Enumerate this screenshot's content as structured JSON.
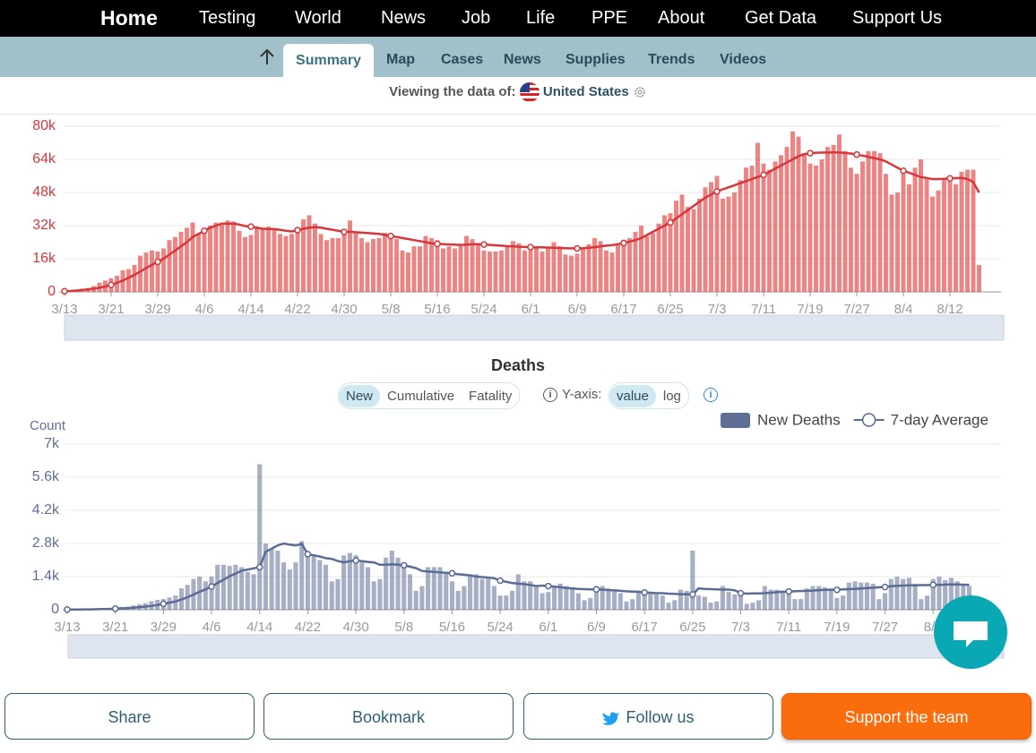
{
  "nav": {
    "brand": "Home",
    "items": [
      "Testing",
      "World",
      "News",
      "Job",
      "Life",
      "PPE",
      "About",
      "Get Data",
      "Support Us"
    ]
  },
  "tabs": [
    "Summary",
    "Map",
    "Cases",
    "News",
    "Supplies",
    "Trends",
    "Videos"
  ],
  "viewing": {
    "label": "Viewing the data of:",
    "country": "United States"
  },
  "chart_data": [
    {
      "type": "bar",
      "categories": [
        "3/13",
        null,
        null,
        null,
        null,
        null,
        null,
        null,
        "3/21",
        null,
        null,
        null,
        null,
        null,
        null,
        null,
        "3/29",
        null,
        null,
        null,
        null,
        null,
        null,
        null,
        "4/6",
        null,
        null,
        null,
        null,
        null,
        null,
        null,
        "4/14",
        null,
        null,
        null,
        null,
        null,
        null,
        null,
        "4/22",
        null,
        null,
        null,
        null,
        null,
        null,
        null,
        "4/30",
        null,
        null,
        null,
        null,
        null,
        null,
        null,
        "5/8",
        null,
        null,
        null,
        null,
        null,
        null,
        null,
        "5/16",
        null,
        null,
        null,
        null,
        null,
        null,
        null,
        "5/24",
        null,
        null,
        null,
        null,
        null,
        null,
        null,
        "6/1",
        null,
        null,
        null,
        null,
        null,
        null,
        null,
        "6/9",
        null,
        null,
        null,
        null,
        null,
        null,
        null,
        "6/17",
        null,
        null,
        null,
        null,
        null,
        null,
        null,
        "6/25",
        null,
        null,
        null,
        null,
        null,
        null,
        null,
        "7/3",
        null,
        null,
        null,
        null,
        null,
        null,
        null,
        "7/11",
        null,
        null,
        null,
        null,
        null,
        null,
        null,
        "7/19",
        null,
        null,
        null,
        null,
        null,
        null,
        null,
        "7/27",
        null,
        null,
        null,
        null,
        null,
        null,
        null,
        "8/4",
        null,
        null,
        null,
        null,
        null,
        null,
        null,
        "8/12",
        null,
        null,
        null,
        null,
        null
      ],
      "series": [
        {
          "type": "bar",
          "color": "#e4504f",
          "values": [
            500,
            700,
            1000,
            1500,
            1900,
            2800,
            4500,
            5500,
            6600,
            7800,
            10500,
            11000,
            13000,
            17500,
            19000,
            20000,
            19500,
            21000,
            25000,
            26500,
            29000,
            31000,
            33500,
            28000,
            30000,
            32000,
            33500,
            33000,
            34500,
            34000,
            29500,
            26500,
            27500,
            31500,
            31000,
            31500,
            30000,
            28000,
            27000,
            28000,
            29000,
            35000,
            37000,
            33000,
            28000,
            25000,
            26000,
            26000,
            30000,
            34500,
            28500,
            26000,
            24000,
            25500,
            26000,
            28500,
            28000,
            25500,
            20000,
            19000,
            22000,
            22000,
            27000,
            26000,
            25000,
            21000,
            22000,
            21000,
            22500,
            27000,
            25500,
            23000,
            20000,
            19500,
            19500,
            20000,
            22000,
            24500,
            23500,
            20000,
            20000,
            21500,
            19500,
            21500,
            24000,
            22000,
            18000,
            17500,
            18500,
            21500,
            23000,
            26000,
            24500,
            20000,
            19000,
            22500,
            25000,
            26000,
            29000,
            32000,
            27000,
            28500,
            33000,
            37000,
            38000,
            44000,
            47000,
            41000,
            40000,
            45000,
            50500,
            53000,
            56000,
            45000,
            46000,
            48000,
            54000,
            60000,
            61000,
            72000,
            62000,
            59000,
            63000,
            66000,
            70000,
            77500,
            75000,
            67000,
            62000,
            61000,
            64000,
            70000,
            71000,
            76000,
            68000,
            60000,
            57000,
            63000,
            68000,
            68000,
            67000,
            57000,
            47000,
            48000,
            57000,
            52000,
            60000,
            64000,
            55000,
            46000,
            49000,
            54000,
            55000,
            52000,
            58000,
            59000,
            59000,
            13000
          ]
        },
        {
          "type": "line",
          "color": "#d7363b",
          "values": [
            300,
            450,
            650,
            900,
            1150,
            1500,
            2000,
            2600,
            3400,
            4400,
            5500,
            6800,
            8200,
            9800,
            11500,
            13000,
            14500,
            16000,
            18000,
            20000,
            22000,
            24000,
            26500,
            28000,
            29500,
            31000,
            32000,
            33000,
            33000,
            33000,
            32500,
            31800,
            31500,
            31000,
            30500,
            30400,
            30300,
            30000,
            29500,
            29200,
            29800,
            30500,
            31000,
            31200,
            31000,
            30500,
            30000,
            29500,
            29000,
            29000,
            28800,
            28600,
            28400,
            28200,
            28000,
            27500,
            27000,
            26500,
            26000,
            25500,
            25000,
            24500,
            24000,
            23500,
            23200,
            23000,
            22900,
            22800,
            22700,
            22800,
            23000,
            23000,
            22900,
            22700,
            22500,
            22300,
            22100,
            22000,
            21800,
            21700,
            21600,
            21500,
            21500,
            21400,
            21300,
            21200,
            21100,
            21000,
            21000,
            21100,
            21300,
            21600,
            22000,
            22300,
            22600,
            23000,
            23600,
            24300,
            25000,
            26000,
            27500,
            29000,
            30500,
            32000,
            33500,
            35500,
            37500,
            39500,
            41500,
            43500,
            45500,
            47000,
            48500,
            49500,
            50500,
            51500,
            52500,
            53500,
            54500,
            55500,
            56500,
            58000,
            59500,
            61000,
            62500,
            64000,
            65500,
            66500,
            67000,
            67200,
            67300,
            67300,
            67400,
            67300,
            67100,
            66800,
            66300,
            65800,
            65200,
            64600,
            64000,
            63000,
            61500,
            60000,
            58500,
            57500,
            56500,
            55500,
            55000,
            54500,
            54500,
            54600,
            54800,
            54900,
            55000,
            54500,
            53000,
            48000
          ]
        }
      ],
      "ylim": [
        0,
        80000
      ],
      "yticks": [
        0,
        {
          "value": 16000,
          "label": "16k"
        },
        {
          "value": 32000,
          "label": "32k"
        },
        {
          "value": 48000,
          "label": "48k"
        },
        {
          "value": 64000,
          "label": "64k"
        },
        {
          "value": 80000,
          "label": "80k"
        }
      ],
      "grid": true
    },
    {
      "type": "bar",
      "title": "Deaths",
      "modes": [
        "New",
        "Cumulative",
        "Fatality"
      ],
      "y_axis_label": "Y-axis:",
      "scales": [
        "value",
        "log"
      ],
      "y_label": "Count",
      "legend": "top-right",
      "categories": [
        "3/13",
        null,
        null,
        null,
        null,
        null,
        null,
        null,
        "3/21",
        null,
        null,
        null,
        null,
        null,
        null,
        null,
        "3/29",
        null,
        null,
        null,
        null,
        null,
        null,
        null,
        "4/6",
        null,
        null,
        null,
        null,
        null,
        null,
        null,
        "4/14",
        null,
        null,
        null,
        null,
        null,
        null,
        null,
        "4/22",
        null,
        null,
        null,
        null,
        null,
        null,
        null,
        "4/30",
        null,
        null,
        null,
        null,
        null,
        null,
        null,
        "5/8",
        null,
        null,
        null,
        null,
        null,
        null,
        null,
        "5/16",
        null,
        null,
        null,
        null,
        null,
        null,
        null,
        "5/24",
        null,
        null,
        null,
        null,
        null,
        null,
        null,
        "6/1",
        null,
        null,
        null,
        null,
        null,
        null,
        null,
        "6/9",
        null,
        null,
        null,
        null,
        null,
        null,
        null,
        "6/17",
        null,
        null,
        null,
        null,
        null,
        null,
        null,
        "6/25",
        null,
        null,
        null,
        null,
        null,
        null,
        null,
        "7/3",
        null,
        null,
        null,
        null,
        null,
        null,
        null,
        "7/11",
        null,
        null,
        null,
        null,
        null,
        null,
        null,
        "7/19",
        null,
        null,
        null,
        null,
        null,
        null,
        null,
        "7/27",
        null,
        null,
        null,
        null,
        null,
        null,
        null,
        "8/4",
        null,
        null,
        null,
        null,
        null,
        null
      ],
      "series": [
        {
          "type": "bar",
          "name": "New Deaths",
          "color": "#5e6e95",
          "values": [
            10,
            10,
            12,
            18,
            23,
            40,
            50,
            60,
            70,
            120,
            130,
            180,
            230,
            280,
            360,
            420,
            450,
            520,
            600,
            900,
            1050,
            1300,
            1400,
            1200,
            1400,
            1900,
            1900,
            1850,
            1900,
            1800,
            1600,
            1500,
            6150,
            2800,
            2600,
            2500,
            2000,
            1700,
            2000,
            2900,
            2300,
            2300,
            2100,
            1900,
            1200,
            1300,
            2300,
            2400,
            2300,
            2000,
            1800,
            1200,
            1300,
            2200,
            2500,
            2200,
            1800,
            1500,
            800,
            1000,
            1800,
            1800,
            1800,
            1600,
            1200,
            800,
            1000,
            1500,
            1500,
            1300,
            1300,
            1000,
            600,
            600,
            800,
            1500,
            1200,
            1200,
            950,
            700,
            750,
            1000,
            1100,
            1000,
            950,
            700,
            400,
            500,
            1000,
            1000,
            900,
            800,
            700,
            350,
            450,
            800,
            800,
            700,
            650,
            600,
            300,
            400,
            850,
            800,
            2500,
            600,
            550,
            300,
            350,
            1000,
            750,
            650,
            650,
            250,
            300,
            400,
            1000,
            850,
            850,
            750,
            700,
            450,
            450,
            900,
            1000,
            1000,
            950,
            900,
            500,
            600,
            1150,
            1200,
            1150,
            1150,
            1100,
            450,
            700,
            1300,
            1400,
            1300,
            1350,
            1100,
            450,
            600,
            1300,
            1400,
            1250,
            1350,
            1200,
            1100,
            1000
          ]
        },
        {
          "type": "line",
          "name": "7-day Average",
          "color": "#5a6c94",
          "values": [
            10,
            11,
            12,
            14,
            17,
            22,
            28,
            35,
            45,
            57,
            70,
            86,
            108,
            132,
            160,
            200,
            250,
            300,
            350,
            430,
            530,
            640,
            760,
            860,
            980,
            1130,
            1270,
            1420,
            1530,
            1650,
            1700,
            1750,
            1800,
            2450,
            2580,
            2720,
            2800,
            2750,
            2720,
            2780,
            2350,
            2300,
            2250,
            2180,
            2150,
            2060,
            2000,
            2050,
            2080,
            2050,
            2020,
            2000,
            1900,
            1900,
            1920,
            1900,
            1880,
            1820,
            1760,
            1640,
            1620,
            1600,
            1580,
            1560,
            1540,
            1500,
            1480,
            1450,
            1400,
            1380,
            1360,
            1330,
            1230,
            1180,
            1130,
            1100,
            1080,
            1050,
            1000,
            1020,
            1000,
            980,
            950,
            920,
            900,
            880,
            870,
            860,
            860,
            850,
            830,
            820,
            800,
            780,
            770,
            760,
            730,
            720,
            700,
            700,
            680,
            670,
            660,
            650,
            650,
            900,
            880,
            870,
            860,
            850,
            850,
            820,
            700,
            680,
            690,
            690,
            700,
            720,
            740,
            760,
            770,
            780,
            790,
            800,
            810,
            830,
            840,
            840,
            840,
            860,
            870,
            880,
            900,
            920,
            930,
            950,
            960,
            990,
            1010,
            1020,
            1030,
            1030,
            1040,
            1040,
            1050,
            1050,
            1060,
            1070,
            1070,
            1060,
            1050
          ]
        }
      ],
      "ylim": [
        0,
        7000
      ],
      "yticks": [
        0,
        {
          "value": 1400,
          "label": "1.4k"
        },
        {
          "value": 2800,
          "label": "2.8k"
        },
        {
          "value": 4200,
          "label": "4.2k"
        },
        {
          "value": 5600,
          "label": "5.6k"
        },
        {
          "value": 7000,
          "label": "7k"
        }
      ],
      "grid": true
    }
  ],
  "buttons": [
    "Share",
    "Bookmark",
    "Follow us",
    "Support the team"
  ]
}
